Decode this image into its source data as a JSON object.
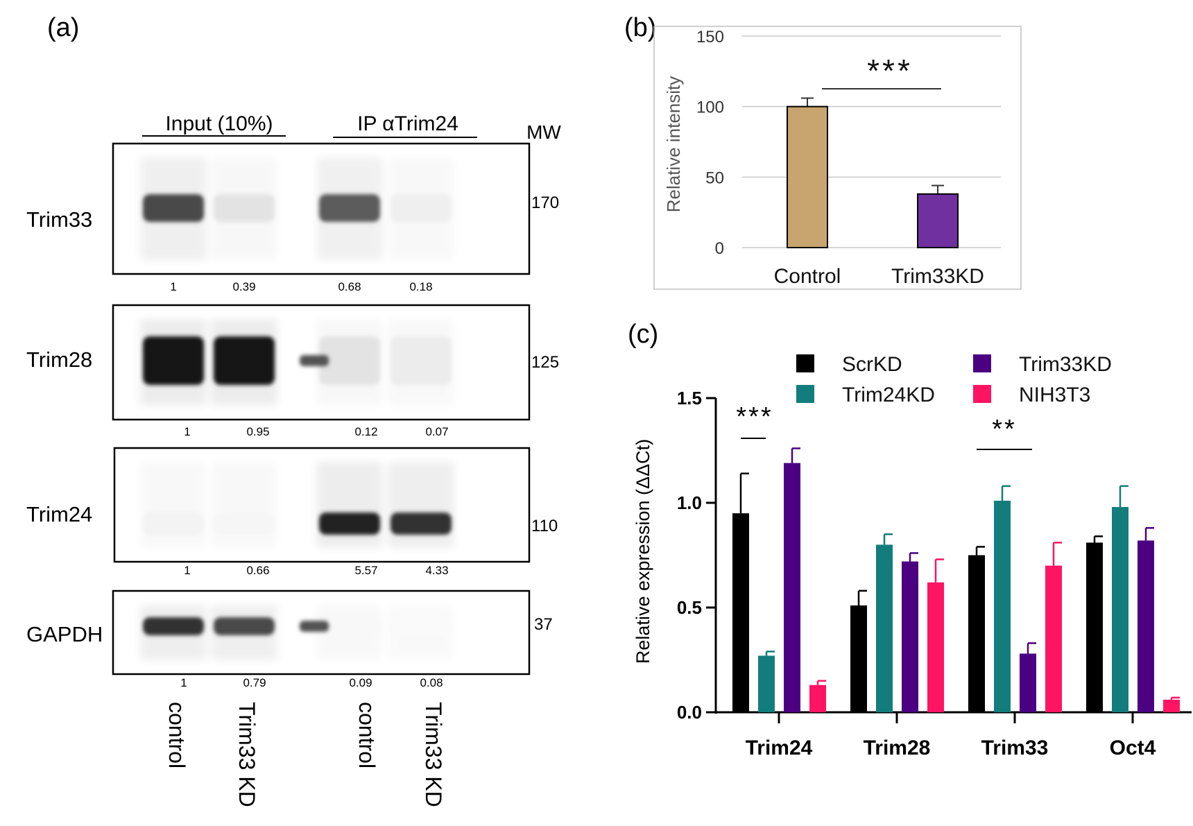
{
  "panel_labels": {
    "a": "(a)",
    "b": "(b)",
    "c": "(c)"
  },
  "panel_a": {
    "headers": {
      "input": "Input (10%)",
      "ip": "IP αTrim24",
      "mw": "MW"
    },
    "blots": [
      {
        "name": "Trim33",
        "mw": "170",
        "quant": [
          "1",
          "0.39",
          "0.68",
          "0.18"
        ],
        "bands": [
          0.78,
          0.12,
          0.7,
          0.07
        ],
        "extra": 0
      },
      {
        "name": "Trim28",
        "mw": "125",
        "quant": [
          "1",
          "0.95",
          "0.12",
          "0.07"
        ],
        "bands": [
          1.0,
          1.0,
          0.12,
          0.08
        ],
        "extra": 0.85
      },
      {
        "name": "Trim24",
        "mw": "110",
        "quant": [
          "1",
          "0.66",
          "5.57",
          "4.33"
        ],
        "bands": [
          0.05,
          0.04,
          0.95,
          0.88
        ],
        "extra": 0
      },
      {
        "name": "GAPDH",
        "mw": "37",
        "quant": [
          "1",
          "0.79",
          "0.09",
          "0.08"
        ],
        "bands": [
          0.88,
          0.78,
          0.03,
          0.02
        ],
        "extra": 0.85
      }
    ],
    "lanes": [
      "control",
      "Trim33 KD",
      "control",
      "Trim33 KD"
    ]
  },
  "panel_b": {
    "chart_data": {
      "type": "bar",
      "title": "",
      "categories": [
        "Control",
        "Trim33KD"
      ],
      "values": [
        100,
        38
      ],
      "errors": [
        6,
        6
      ],
      "colors": [
        "#C8A46E",
        "#7030A0"
      ],
      "xlabel": "",
      "ylabel": "Relative intensity",
      "ylim": [
        0,
        150
      ],
      "yticks": [
        "0",
        "50",
        "100",
        "150"
      ],
      "grid": true,
      "annotation": "***"
    }
  },
  "panel_c": {
    "chart_data": {
      "type": "bar",
      "title": "",
      "categories": [
        "Trim24",
        "Trim28",
        "Trim33",
        "Oct4"
      ],
      "series": [
        {
          "name": "ScrKD",
          "color": "#000000",
          "values": [
            0.95,
            0.51,
            0.75,
            0.81
          ],
          "errors": [
            0.19,
            0.07,
            0.04,
            0.03
          ]
        },
        {
          "name": "Trim24KD",
          "color": "#137D7D",
          "values": [
            0.27,
            0.8,
            1.01,
            0.98
          ],
          "errors": [
            0.02,
            0.05,
            0.07,
            0.1
          ]
        },
        {
          "name": "Trim33KD",
          "color": "#4B0082",
          "values": [
            1.19,
            0.72,
            0.28,
            0.82
          ],
          "errors": [
            0.07,
            0.04,
            0.05,
            0.06
          ]
        },
        {
          "name": "NIH3T3",
          "color": "#FF1464",
          "values": [
            0.13,
            0.62,
            0.7,
            0.06
          ],
          "errors": [
            0.02,
            0.11,
            0.11,
            0.01
          ]
        }
      ],
      "xlabel": "",
      "ylabel": "Relative expression (ΔΔCt)",
      "ylim": [
        0,
        1.5
      ],
      "yticks": [
        "0.0",
        "0.5",
        "1.0",
        "1.5"
      ],
      "grid": false,
      "annotations": [
        {
          "text": "***",
          "category": "Trim24"
        },
        {
          "text": "**",
          "category": "Trim33"
        }
      ]
    }
  }
}
